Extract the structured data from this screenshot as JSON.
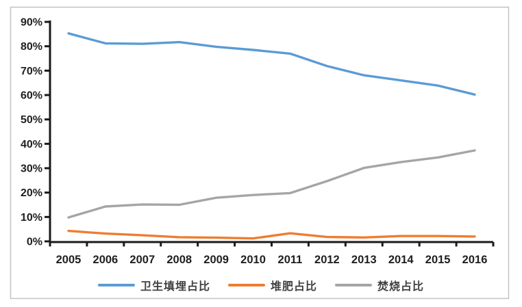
{
  "chart_data": {
    "type": "line",
    "title": "",
    "xlabel": "",
    "ylabel": "",
    "categories": [
      "2005",
      "2006",
      "2007",
      "2008",
      "2009",
      "2010",
      "2011",
      "2012",
      "2013",
      "2014",
      "2015",
      "2016"
    ],
    "series": [
      {
        "name": "卫生填埋占比",
        "slug": "sanitary-landfill-share",
        "color": "#5B9BD5",
        "values": [
          85.3,
          81.2,
          81.0,
          81.7,
          79.8,
          78.5,
          77.0,
          71.9,
          68.1,
          66.0,
          63.9,
          60.2
        ]
      },
      {
        "name": "堆肥占比",
        "slug": "compost-share",
        "color": "#ED7D31",
        "values": [
          4.3,
          3.2,
          2.5,
          1.7,
          1.5,
          1.2,
          3.3,
          1.8,
          1.6,
          2.2,
          2.2,
          2.0
        ]
      },
      {
        "name": "焚烧占比",
        "slug": "incineration-share",
        "color": "#A5A5A5",
        "values": [
          9.8,
          14.3,
          15.1,
          15.0,
          17.9,
          19.0,
          19.8,
          24.7,
          30.1,
          32.5,
          34.4,
          37.3
        ]
      }
    ],
    "ylim": [
      0,
      90
    ],
    "ytick_step": 10,
    "ytick_labels": [
      "0%",
      "10%",
      "20%",
      "30%",
      "40%",
      "50%",
      "60%",
      "70%",
      "80%",
      "90%"
    ],
    "grid": false,
    "legend_position": "bottom"
  },
  "colors": {
    "axis": "#1a1a1a",
    "tick_label": "#1f1f1f",
    "legend_text": "#3f3f3f",
    "frame_border": "#c2c2c2",
    "background": "#ffffff"
  }
}
